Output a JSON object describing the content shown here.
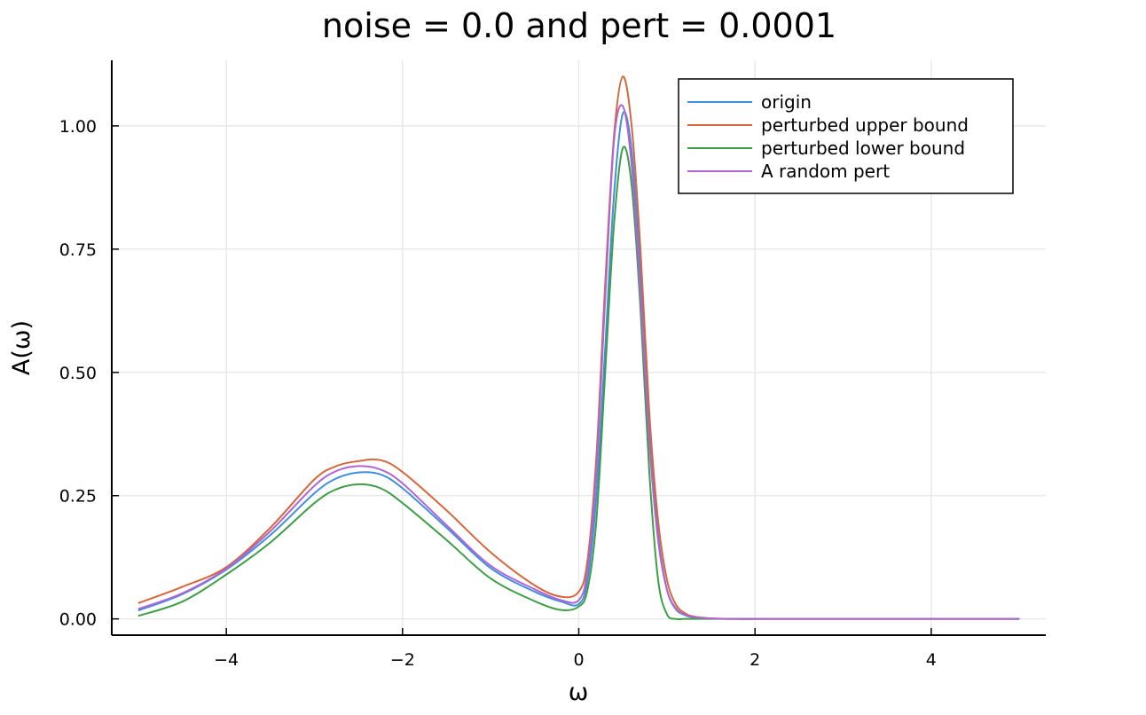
{
  "chart_data": {
    "type": "line",
    "title": "noise = 0.0 and pert = 0.0001",
    "xlabel": "ω",
    "ylabel": "A(ω)",
    "xlim": [
      -5.3,
      5.3
    ],
    "ylim": [
      -0.033,
      1.133
    ],
    "xticks": [
      -4,
      -2,
      0,
      2,
      4
    ],
    "xtick_labels": [
      "−4",
      "−2",
      "0",
      "2",
      "4"
    ],
    "yticks": [
      0.0,
      0.25,
      0.5,
      0.75,
      1.0
    ],
    "ytick_labels": [
      "0.00",
      "0.25",
      "0.50",
      "0.75",
      "1.00"
    ],
    "grid": true,
    "legend_position": "top-right",
    "x": [
      -5.0,
      -4.5,
      -4.0,
      -3.5,
      -3.0,
      -2.75,
      -2.5,
      -2.25,
      -2.0,
      -1.5,
      -1.0,
      -0.5,
      -0.2,
      0.0,
      0.1,
      0.2,
      0.3,
      0.4,
      0.5,
      0.6,
      0.7,
      0.8,
      0.9,
      1.0,
      1.1,
      1.2,
      1.3,
      1.5,
      1.8,
      2.0,
      3.0,
      4.0,
      5.0
    ],
    "series": [
      {
        "name": "origin",
        "color": "#3f8fe0",
        "values": [
          0.017,
          0.05,
          0.1,
          0.17,
          0.255,
          0.285,
          0.297,
          0.293,
          0.265,
          0.185,
          0.103,
          0.055,
          0.035,
          0.03,
          0.08,
          0.25,
          0.55,
          0.86,
          1.025,
          0.95,
          0.7,
          0.38,
          0.17,
          0.06,
          0.02,
          0.008,
          0.003,
          0.001,
          0.0,
          0.0,
          0.0,
          0.0,
          0.0
        ]
      },
      {
        "name": "perturbed upper bound",
        "color": "#d5673c",
        "values": [
          0.032,
          0.065,
          0.105,
          0.185,
          0.283,
          0.31,
          0.32,
          0.322,
          0.298,
          0.22,
          0.135,
          0.068,
          0.045,
          0.055,
          0.12,
          0.33,
          0.68,
          0.98,
          1.1,
          1.0,
          0.75,
          0.42,
          0.2,
          0.08,
          0.03,
          0.012,
          0.005,
          0.001,
          0.0,
          0.0,
          0.0,
          0.0,
          0.0
        ]
      },
      {
        "name": "perturbed lower bound",
        "color": "#3e9e45",
        "values": [
          0.006,
          0.035,
          0.09,
          0.155,
          0.235,
          0.263,
          0.273,
          0.265,
          0.235,
          0.16,
          0.082,
          0.036,
          0.018,
          0.025,
          0.06,
          0.2,
          0.5,
          0.8,
          0.955,
          0.88,
          0.63,
          0.3,
          0.08,
          0.01,
          0.0,
          0.0,
          0.0,
          0.0,
          0.0,
          0.0,
          0.0,
          0.0,
          0.0
        ]
      },
      {
        "name": "A random pert",
        "color": "#b065d3",
        "values": [
          0.02,
          0.052,
          0.102,
          0.178,
          0.27,
          0.3,
          0.31,
          0.303,
          0.275,
          0.19,
          0.108,
          0.06,
          0.038,
          0.038,
          0.1,
          0.3,
          0.65,
          0.97,
          1.04,
          0.92,
          0.66,
          0.36,
          0.16,
          0.06,
          0.022,
          0.009,
          0.004,
          0.001,
          0.0,
          0.0,
          0.0,
          0.0,
          0.0
        ]
      }
    ]
  }
}
